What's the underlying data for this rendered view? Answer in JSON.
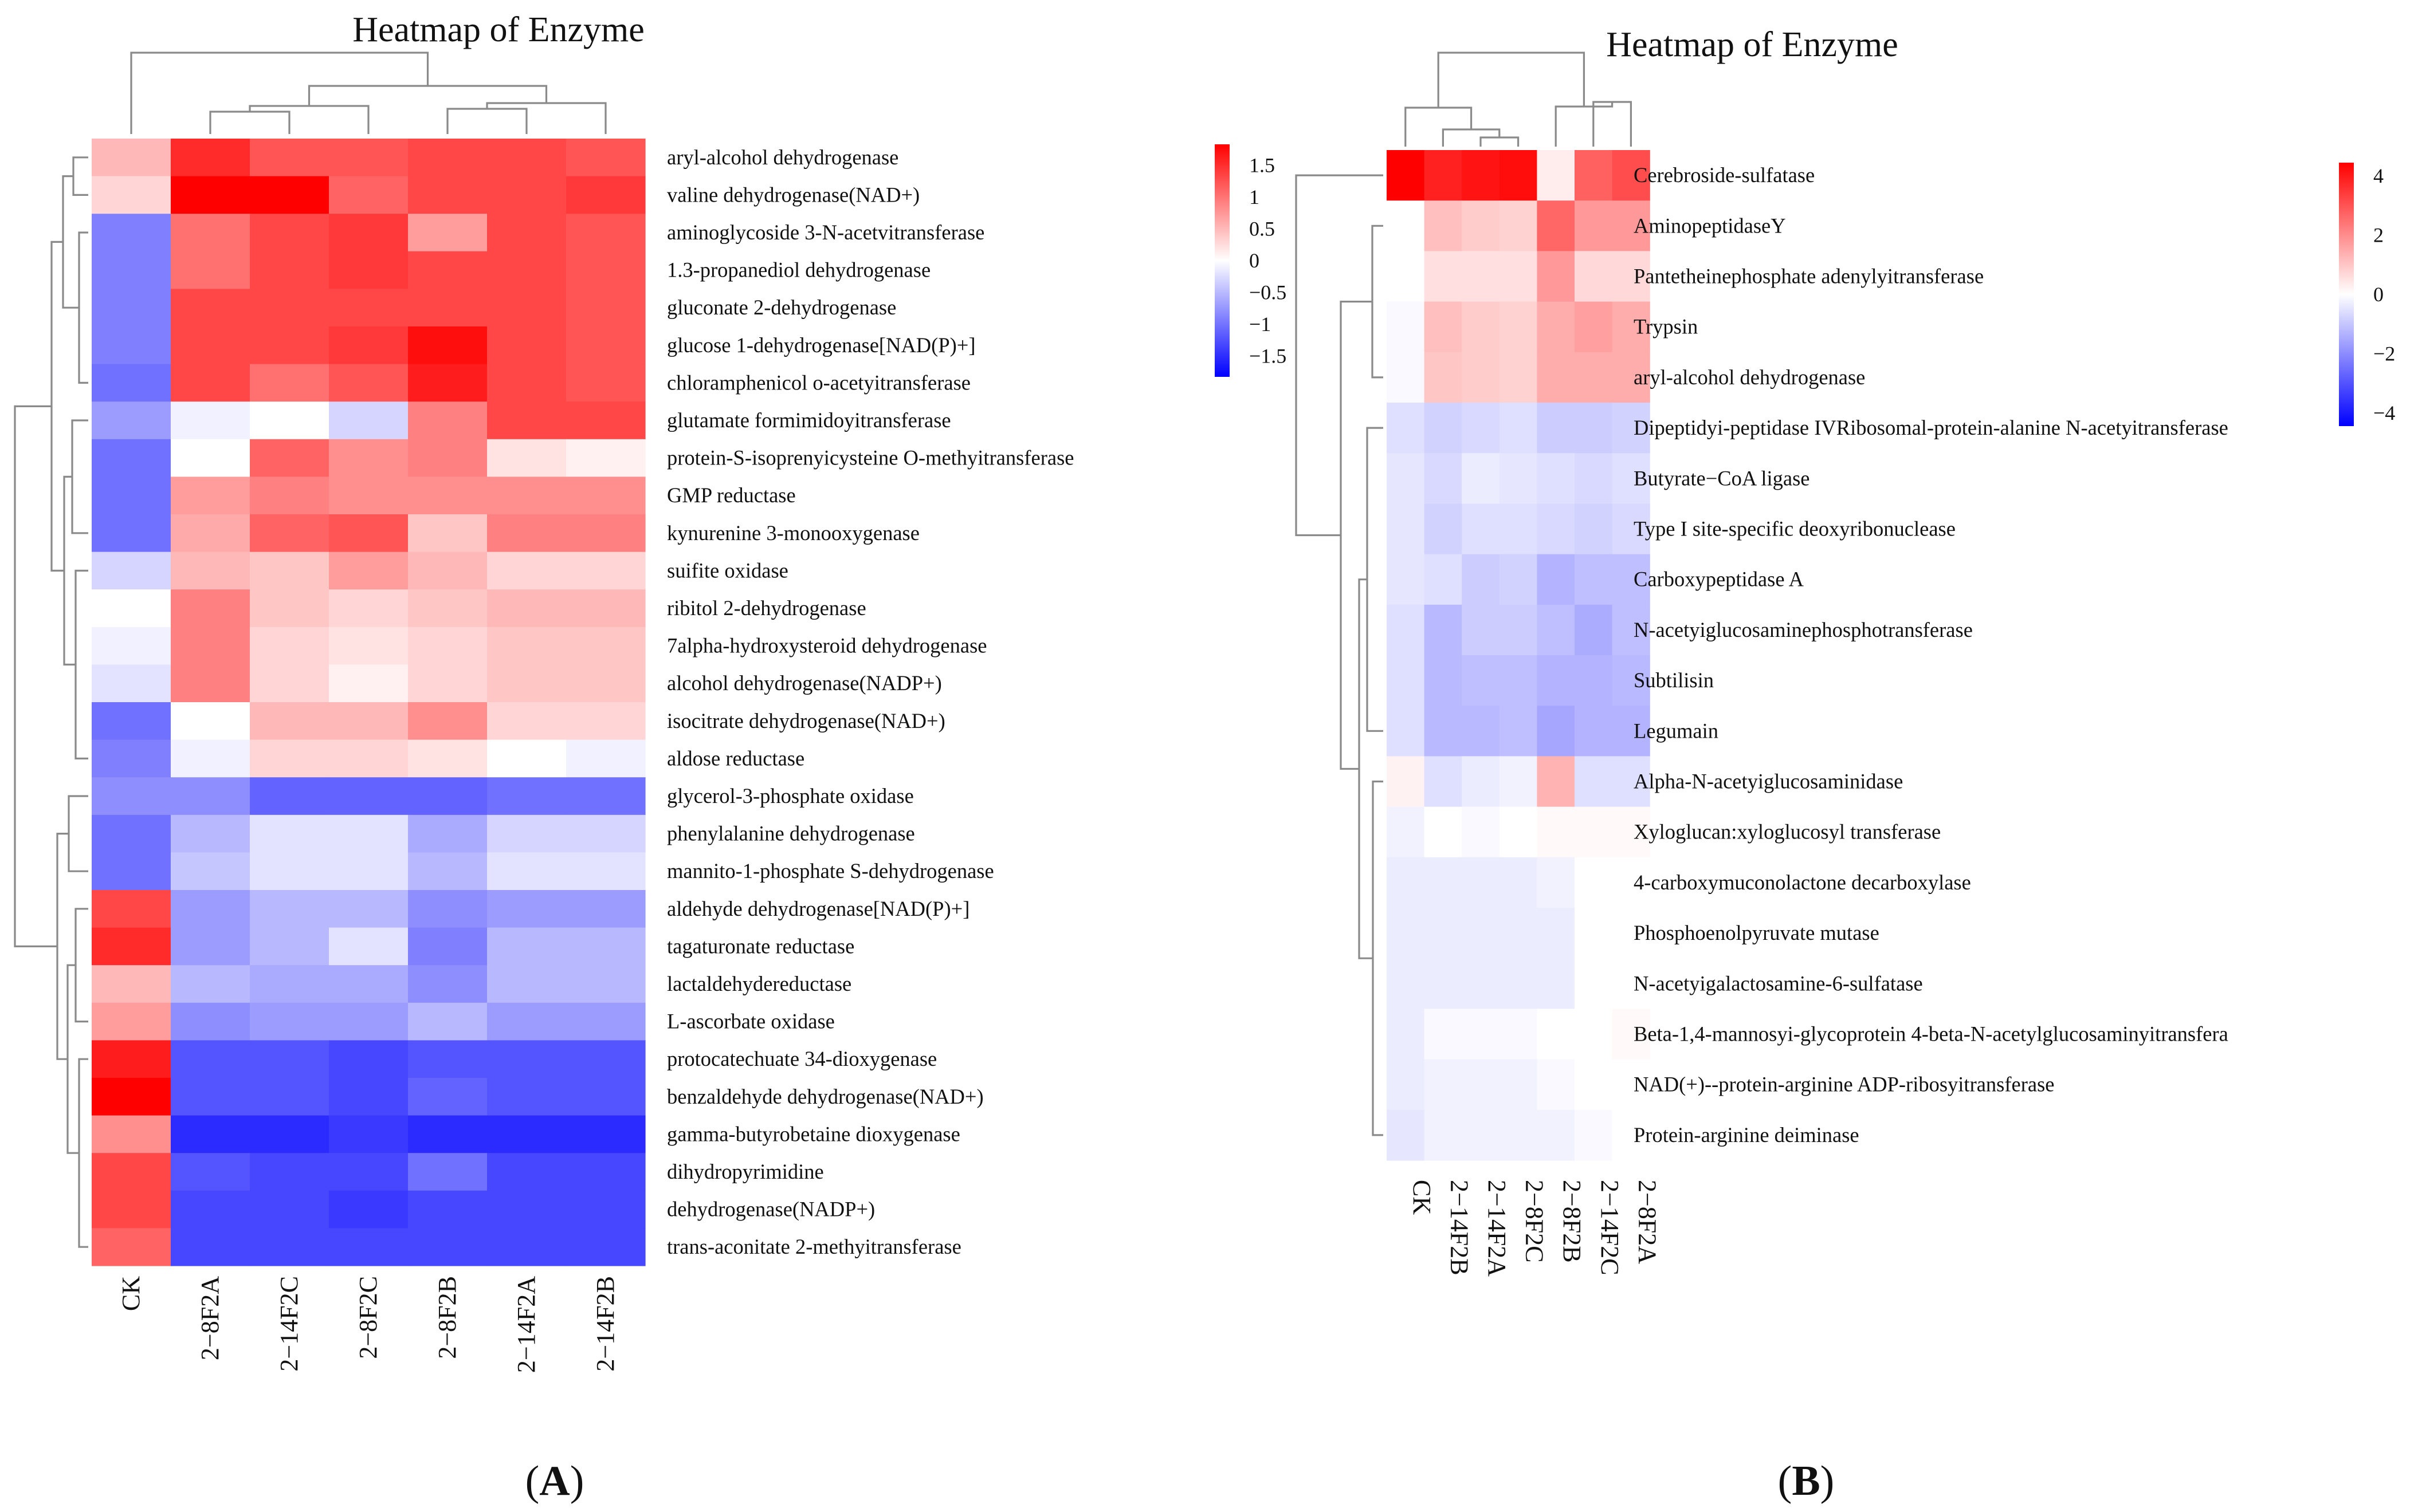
{
  "panel_labels": {
    "A_open": "(",
    "A_letter": "A",
    "A_close": ")",
    "B_open": "(",
    "B_letter": "B",
    "B_close": ")"
  },
  "colors": {
    "high": "#ff0000",
    "mid": "#ffffff",
    "low": "#0000ff",
    "dendrogram": "#8a8a8a"
  },
  "chart_data": [
    {
      "type": "heatmap",
      "panel": "A",
      "title": "Heatmap of Enzyme",
      "columns": [
        "CK",
        "2−8F2A",
        "2−14F2C",
        "2−8F2C",
        "2−8F2B",
        "2−14F2A",
        "2−14F2B"
      ],
      "rows": [
        "aryl-alcohol dehydrogenase",
        "valine dehydrogenase(NAD+)",
        "aminoglycoside 3-N-acetvitransferase",
        "1.3-propanediol dehydrogenase",
        "gluconate 2-dehydrogenase",
        "glucose 1-dehydrogenase[NAD(P)+]",
        "chloramphenicol o-acetyitransferase",
        "glutamate formimidoyitransferase",
        "protein-S-isoprenyicysteine O-methyitransferase",
        "GMP reductase",
        "kynurenine 3-monooxygenase",
        "suifite oxidase",
        "ribitol 2-dehydrogenase",
        "7alpha-hydroxysteroid dehydrogenase",
        "alcohol dehydrogenase(NADP+)",
        "isocitrate dehydrogenase(NAD+)",
        "aldose reductase",
        "glycerol-3-phosphate oxidase",
        "phenylalanine dehydrogenase",
        "mannito-1-phosphate S-dehydrogenase",
        "aldehyde dehydrogenase[NAD(P)+]",
        "tagaturonate reductase",
        "lactaldehydereductase",
        "L-ascorbate oxidase",
        "protocatechuate 34-dioxygenase",
        "benzaldehyde dehydrogenase(NAD+)",
        "gamma-butyrobetaine dioxygenase",
        "dihydropyrimidine",
        "dehydrogenase(NADP+)",
        "trans-aconitate 2-methyitransferase"
      ],
      "values": [
        [
          0.5,
          1.5,
          1.2,
          1.2,
          1.3,
          1.3,
          1.2
        ],
        [
          0.3,
          1.8,
          1.8,
          1.1,
          1.3,
          1.3,
          1.4
        ],
        [
          -0.9,
          1.0,
          1.3,
          1.4,
          0.7,
          1.3,
          1.2
        ],
        [
          -0.9,
          1.0,
          1.3,
          1.4,
          1.3,
          1.3,
          1.2
        ],
        [
          -0.9,
          1.3,
          1.3,
          1.3,
          1.3,
          1.3,
          1.2
        ],
        [
          -0.9,
          1.3,
          1.3,
          1.4,
          1.7,
          1.3,
          1.2
        ],
        [
          -1.0,
          1.3,
          1.0,
          1.2,
          1.6,
          1.3,
          1.2
        ],
        [
          -0.7,
          -0.1,
          0.0,
          -0.3,
          0.9,
          1.3,
          1.3
        ],
        [
          -1.0,
          0.0,
          1.1,
          0.8,
          0.9,
          0.2,
          0.1
        ],
        [
          -1.0,
          0.7,
          0.9,
          0.8,
          0.8,
          0.8,
          0.8
        ],
        [
          -1.0,
          0.6,
          1.1,
          1.2,
          0.4,
          0.9,
          0.9
        ],
        [
          -0.3,
          0.5,
          0.4,
          0.7,
          0.5,
          0.3,
          0.3
        ],
        [
          0.0,
          0.9,
          0.4,
          0.3,
          0.4,
          0.5,
          0.5
        ],
        [
          -0.1,
          0.9,
          0.3,
          0.2,
          0.3,
          0.4,
          0.4
        ],
        [
          -0.2,
          0.9,
          0.3,
          0.1,
          0.3,
          0.4,
          0.4
        ],
        [
          -1.0,
          0.0,
          0.5,
          0.5,
          0.8,
          0.3,
          0.3
        ],
        [
          -0.9,
          -0.1,
          0.3,
          0.3,
          0.2,
          0.0,
          -0.1
        ],
        [
          -0.8,
          -0.8,
          -1.1,
          -1.1,
          -1.1,
          -1.0,
          -1.0
        ],
        [
          -1.0,
          -0.5,
          -0.2,
          -0.2,
          -0.6,
          -0.3,
          -0.3
        ],
        [
          -1.0,
          -0.4,
          -0.2,
          -0.2,
          -0.5,
          -0.2,
          -0.2
        ],
        [
          1.3,
          -0.7,
          -0.5,
          -0.5,
          -0.8,
          -0.7,
          -0.7
        ],
        [
          1.5,
          -0.7,
          -0.5,
          -0.2,
          -0.9,
          -0.5,
          -0.5
        ],
        [
          0.5,
          -0.5,
          -0.6,
          -0.6,
          -0.8,
          -0.5,
          -0.5
        ],
        [
          0.7,
          -0.8,
          -0.7,
          -0.7,
          -0.5,
          -0.7,
          -0.7
        ],
        [
          1.6,
          -1.2,
          -1.2,
          -1.3,
          -1.2,
          -1.2,
          -1.2
        ],
        [
          1.8,
          -1.2,
          -1.2,
          -1.3,
          -1.1,
          -1.2,
          -1.2
        ],
        [
          0.8,
          -1.5,
          -1.5,
          -1.4,
          -1.5,
          -1.5,
          -1.5
        ],
        [
          1.3,
          -1.2,
          -1.3,
          -1.3,
          -1.0,
          -1.3,
          -1.3
        ],
        [
          1.3,
          -1.3,
          -1.3,
          -1.4,
          -1.3,
          -1.3,
          -1.3
        ],
        [
          1.1,
          -1.3,
          -1.3,
          -1.3,
          -1.3,
          -1.3,
          -1.3
        ]
      ],
      "legend": {
        "ticks": [
          "1.5",
          "1",
          "0.5",
          "0",
          "−0.5",
          "−1",
          "−1.5"
        ],
        "range": [
          -1.8,
          1.8
        ]
      }
    },
    {
      "type": "heatmap",
      "panel": "B",
      "title": "Heatmap of Enzyme",
      "columns": [
        "CK",
        "2−14F2B",
        "2−14F2A",
        "2−8F2C",
        "2−8F2B",
        "2−14F2C",
        "2−8F2A"
      ],
      "rows": [
        "Cerebroside-sulfatase",
        "AminopeptidaseY",
        "Pantetheinephosphate adenylyitransferase",
        "Trypsin",
        "aryl-alcohol dehydrogenase",
        "Dipeptidyi-peptidase IVRibosomal-protein-alanine N-acetyitransferase",
        "Butyrate−CoA ligase",
        "Type I site-specific deoxyribonuclease",
        "Carboxypeptidase A",
        "N-acetyiglucosaminephosphotransferase",
        "Subtilisin",
        "Legumain",
        "Alpha-N-acetyiglucosaminidase",
        "Xyloglucan:xyloglucosyl transferase",
        "4-carboxymuconolactone decarboxylase",
        "Phosphoenolpyruvate mutase",
        "N-acetyigalactosamine-6-sulfatase",
        "Beta-1,4-mannosyi-glycoprotein 4-beta-N-acetylglucosaminyitransfera",
        "NAD(+)--protein-arginine ADP-ribosyitransferase",
        "Protein-arginine deiminase"
      ],
      "values": [
        [
          4.0,
          3.5,
          3.7,
          3.8,
          0.3,
          2.5,
          2.8
        ],
        [
          0.0,
          1.0,
          0.8,
          0.7,
          2.4,
          1.6,
          1.6
        ],
        [
          0.0,
          0.5,
          0.5,
          0.5,
          1.6,
          0.6,
          0.6
        ],
        [
          -0.1,
          1.0,
          0.8,
          0.7,
          1.3,
          1.5,
          1.3
        ],
        [
          -0.1,
          0.9,
          0.8,
          0.7,
          1.3,
          1.3,
          1.3
        ],
        [
          -0.5,
          -0.7,
          -0.6,
          -0.5,
          -0.8,
          -0.8,
          -0.7
        ],
        [
          -0.4,
          -0.6,
          -0.3,
          -0.4,
          -0.5,
          -0.6,
          -0.5
        ],
        [
          -0.4,
          -0.7,
          -0.5,
          -0.5,
          -0.6,
          -0.7,
          -0.6
        ],
        [
          -0.4,
          -0.5,
          -0.8,
          -0.7,
          -1.2,
          -1.0,
          -1.0
        ],
        [
          -0.5,
          -1.1,
          -0.8,
          -0.8,
          -1.0,
          -1.3,
          -1.0
        ],
        [
          -0.5,
          -1.1,
          -1.0,
          -1.0,
          -1.2,
          -1.2,
          -1.1
        ],
        [
          -0.5,
          -1.1,
          -1.1,
          -1.0,
          -1.4,
          -1.2,
          -1.2
        ],
        [
          0.2,
          -0.5,
          -0.3,
          -0.2,
          1.2,
          -0.5,
          -0.5
        ],
        [
          -0.2,
          0.0,
          -0.1,
          0.0,
          0.1,
          0.1,
          0.1
        ],
        [
          -0.3,
          -0.3,
          -0.3,
          -0.3,
          -0.2,
          0.0,
          0.0
        ],
        [
          -0.3,
          -0.3,
          -0.3,
          -0.3,
          -0.3,
          0.0,
          0.0
        ],
        [
          -0.3,
          -0.3,
          -0.3,
          -0.3,
          -0.3,
          0.0,
          0.0
        ],
        [
          -0.3,
          -0.1,
          -0.1,
          -0.1,
          0.0,
          0.0,
          0.1
        ],
        [
          -0.3,
          -0.2,
          -0.2,
          -0.2,
          -0.1,
          0.0,
          0.0
        ],
        [
          -0.4,
          -0.2,
          -0.2,
          -0.2,
          -0.2,
          -0.1,
          0.0
        ]
      ],
      "legend": {
        "ticks": [
          "4",
          "2",
          "0",
          "−2",
          "−4"
        ],
        "range": [
          -4,
          4
        ]
      }
    }
  ]
}
